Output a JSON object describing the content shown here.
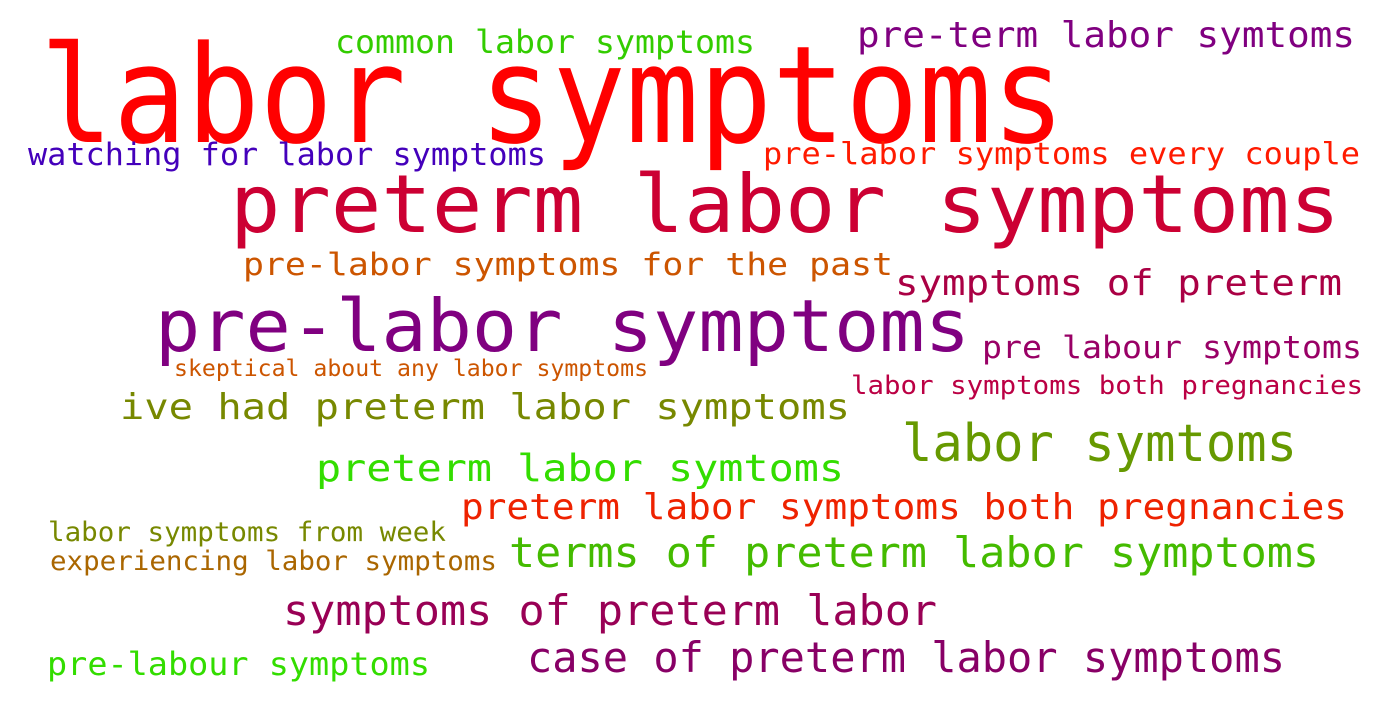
{
  "words": [
    {
      "text": "labor symptoms",
      "color": "#ff0000"
    },
    {
      "text": "preterm labor symptoms",
      "color": "#cc0033"
    },
    {
      "text": "pre-labor symptoms",
      "color": "#800080"
    },
    {
      "text": "common labor symptoms",
      "color": "#33cc00"
    },
    {
      "text": "pre-term labor symtoms",
      "color": "#800080"
    },
    {
      "text": "watching for labor symptoms",
      "color": "#4400bb"
    },
    {
      "text": "pre-labor symptoms every couple",
      "color": "#ff1a00"
    },
    {
      "text": "pre-labor symptoms for the past",
      "color": "#cc5500"
    },
    {
      "text": "symptoms of preterm",
      "color": "#aa0044"
    },
    {
      "text": "pre labour symptoms",
      "color": "#990066"
    },
    {
      "text": "skeptical about any labor symptoms",
      "color": "#cc5500"
    },
    {
      "text": "labor symptoms both pregnancies",
      "color": "#bb0044"
    },
    {
      "text": "ive had preterm labor symptoms",
      "color": "#778800"
    },
    {
      "text": "labor symtoms",
      "color": "#669900"
    },
    {
      "text": "preterm labor symtoms",
      "color": "#33dd00"
    },
    {
      "text": "preterm labor symptoms both pregnancies",
      "color": "#ee2200"
    },
    {
      "text": "labor symptoms from week",
      "color": "#778800"
    },
    {
      "text": "experiencing labor symptoms",
      "color": "#aa6600"
    },
    {
      "text": "terms of preterm labor symptoms",
      "color": "#44bb00"
    },
    {
      "text": "symptoms of preterm labor",
      "color": "#990055"
    },
    {
      "text": "pre-labour symptoms",
      "color": "#33dd00"
    },
    {
      "text": "case of preterm labor symptoms",
      "color": "#880066"
    }
  ]
}
